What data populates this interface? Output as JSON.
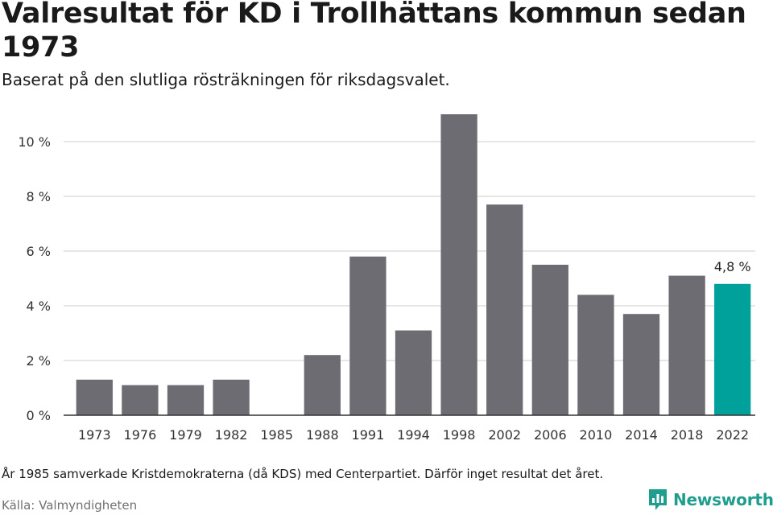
{
  "title": "Valresultat för KD i Trollhättans kommun sedan 1973",
  "subtitle": "Baserat på den slutliga rösträkningen för riksdagsvalet.",
  "note": "År 1985 samverkade Kristdemokraterna (då KDS) med Centerpartiet. Därför inget resultat det året.",
  "source": "Källa: Valmyndigheten",
  "brand": "Newsworthy",
  "colors": {
    "bar": "#6d6c72",
    "highlight": "#00a19a",
    "grid": "#dddddd",
    "axis": "#333333",
    "brand": "#1f9e8f"
  },
  "chart_data": {
    "type": "bar",
    "title": "Valresultat för KD i Trollhättans kommun sedan 1973",
    "xlabel": "",
    "ylabel": "",
    "ylim": [
      0,
      11.5
    ],
    "yticks": [
      0,
      2,
      4,
      6,
      8,
      10
    ],
    "ytick_labels": [
      "0 %",
      "2 %",
      "4 %",
      "6 %",
      "8 %",
      "10 %"
    ],
    "categories": [
      "1973",
      "1976",
      "1979",
      "1982",
      "1985",
      "1988",
      "1991",
      "1994",
      "1998",
      "2002",
      "2006",
      "2010",
      "2014",
      "2018",
      "2022"
    ],
    "values": [
      1.3,
      1.1,
      1.1,
      1.3,
      null,
      2.2,
      5.8,
      3.1,
      11.0,
      7.7,
      5.5,
      4.4,
      3.7,
      5.1,
      4.8
    ],
    "highlight_index": 14,
    "annotation": "4,8 %",
    "grid": true
  }
}
